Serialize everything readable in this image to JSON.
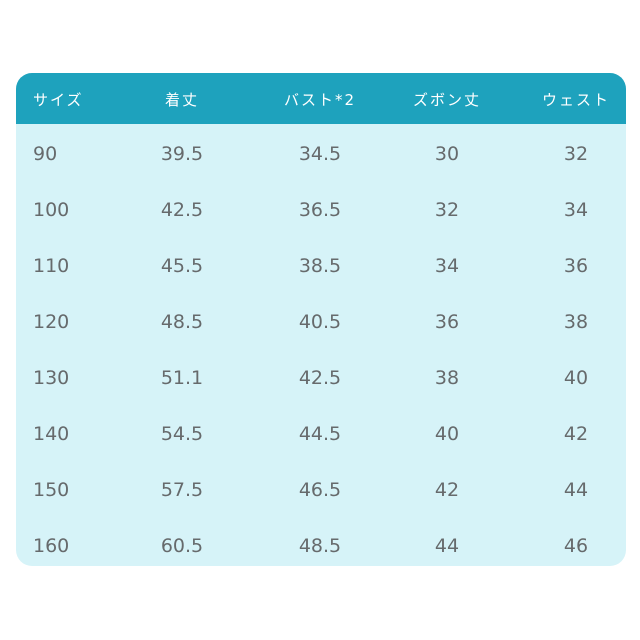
{
  "table": {
    "headers": [
      "サイズ",
      "着丈",
      "バスト*2",
      "ズボン丈",
      "ウェスト"
    ],
    "rows": [
      [
        "90",
        "39.5",
        "34.5",
        "30",
        "32"
      ],
      [
        "100",
        "42.5",
        "36.5",
        "32",
        "34"
      ],
      [
        "110",
        "45.5",
        "38.5",
        "34",
        "36"
      ],
      [
        "120",
        "48.5",
        "40.5",
        "36",
        "38"
      ],
      [
        "130",
        "51.1",
        "42.5",
        "38",
        "40"
      ],
      [
        "140",
        "54.5",
        "44.5",
        "40",
        "42"
      ],
      [
        "150",
        "57.5",
        "46.5",
        "42",
        "44"
      ],
      [
        "160",
        "60.5",
        "48.5",
        "44",
        "46"
      ]
    ]
  },
  "colors": {
    "header": "#1ea2bd",
    "body": "#d6f3f8",
    "text": "#666a6c"
  }
}
